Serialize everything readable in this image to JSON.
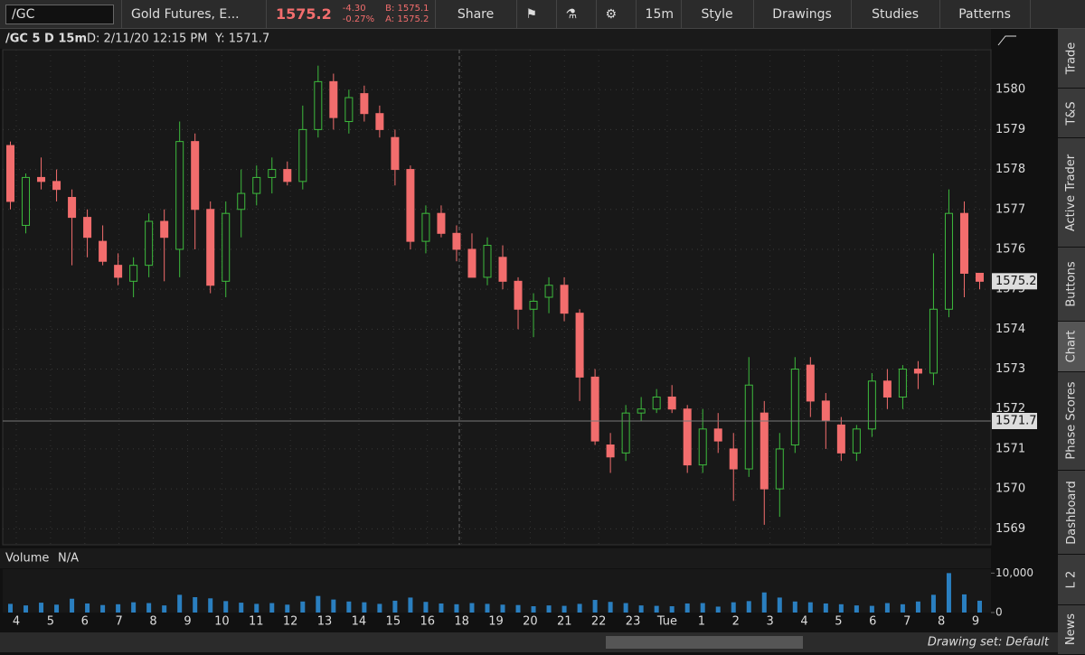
{
  "toolbar": {
    "symbol": "/GC",
    "description": "Gold Futures, E...",
    "last": "1575.2",
    "change": "-4.30",
    "change_pct": "-0.27%",
    "bid": "B: 1575.1",
    "ask": "A: 1575.2",
    "buttons": [
      "Share",
      "15m",
      "Style",
      "Drawings",
      "Studies",
      "Patterns"
    ]
  },
  "chart_header": {
    "symbol": "/GC 5 D 15m",
    "date": "D: 2/11/20 12:15 PM",
    "y": "Y: 1571.7"
  },
  "chart_data": {
    "type": "candlestick",
    "open": [
      1578.6,
      1576.6,
      1577.8,
      1577.7,
      1577.3,
      1576.8,
      1576.2,
      1575.6,
      1575.2,
      1575.6,
      1576.7,
      1576.0,
      1578.7,
      1577.0,
      1575.2,
      1577.0,
      1577.4,
      1577.8,
      1578.0,
      1577.7,
      1579.0,
      1580.2,
      1579.2,
      1579.9,
      1579.4,
      1578.8,
      1578.0,
      1576.2,
      1576.9,
      1576.4,
      1576.0,
      1575.3,
      1575.8,
      1575.2,
      1574.5,
      1574.8,
      1575.1,
      1574.4,
      1572.8,
      1571.1,
      1570.9,
      1571.9,
      1572.0,
      1572.3,
      1572.0,
      1570.6,
      1571.5,
      1571.0,
      1570.5,
      1571.9,
      1570.0,
      1571.1,
      1573.1,
      1572.2,
      1571.6,
      1570.9,
      1571.5,
      1572.7,
      1572.3,
      1573.0,
      1572.9,
      1574.5,
      1576.9,
      1575.4
    ],
    "high": [
      1578.7,
      1577.9,
      1578.3,
      1578.0,
      1577.5,
      1577.0,
      1576.6,
      1575.9,
      1575.8,
      1576.9,
      1577.0,
      1579.2,
      1578.9,
      1577.2,
      1577.2,
      1578.0,
      1578.1,
      1578.3,
      1578.2,
      1579.6,
      1580.6,
      1580.4,
      1580.0,
      1580.1,
      1579.6,
      1579.0,
      1578.1,
      1577.1,
      1577.1,
      1576.6,
      1576.4,
      1576.3,
      1576.1,
      1575.3,
      1574.9,
      1575.3,
      1575.3,
      1574.5,
      1573.0,
      1571.4,
      1572.1,
      1572.3,
      1572.5,
      1572.6,
      1572.1,
      1572.0,
      1571.9,
      1571.4,
      1573.3,
      1572.2,
      1571.4,
      1573.3,
      1573.3,
      1572.4,
      1571.8,
      1571.6,
      1572.9,
      1573.0,
      1573.1,
      1573.2,
      1575.9,
      1577.5,
      1577.2,
      1575.4
    ],
    "low": [
      1577.0,
      1576.4,
      1577.5,
      1577.2,
      1575.6,
      1575.8,
      1575.6,
      1575.1,
      1574.8,
      1575.3,
      1575.2,
      1575.3,
      1576.0,
      1574.9,
      1574.8,
      1576.3,
      1577.1,
      1577.4,
      1577.6,
      1577.5,
      1578.8,
      1579.0,
      1578.9,
      1579.2,
      1578.8,
      1577.6,
      1576.0,
      1575.9,
      1576.3,
      1575.7,
      1575.3,
      1575.1,
      1575.0,
      1574.0,
      1573.8,
      1574.4,
      1574.2,
      1572.2,
      1571.1,
      1570.4,
      1570.7,
      1571.7,
      1571.9,
      1571.9,
      1570.4,
      1570.4,
      1570.9,
      1569.7,
      1570.3,
      1569.1,
      1569.3,
      1570.9,
      1571.8,
      1571.0,
      1570.7,
      1570.7,
      1571.3,
      1572.0,
      1572.0,
      1572.5,
      1572.6,
      1574.3,
      1574.8,
      1575.0
    ],
    "close": [
      1577.2,
      1577.8,
      1577.7,
      1577.5,
      1576.8,
      1576.3,
      1575.7,
      1575.3,
      1575.6,
      1576.7,
      1576.3,
      1578.7,
      1577.0,
      1575.1,
      1576.9,
      1577.4,
      1577.8,
      1578.0,
      1577.7,
      1579.0,
      1580.2,
      1579.3,
      1579.8,
      1579.4,
      1579.0,
      1578.0,
      1576.2,
      1576.9,
      1576.4,
      1576.0,
      1575.3,
      1576.1,
      1575.2,
      1574.5,
      1574.7,
      1575.1,
      1574.4,
      1572.8,
      1571.2,
      1570.8,
      1571.9,
      1572.0,
      1572.3,
      1572.0,
      1570.6,
      1571.5,
      1571.2,
      1570.5,
      1572.6,
      1570.0,
      1571.0,
      1573.0,
      1572.2,
      1571.7,
      1570.9,
      1571.5,
      1572.7,
      1572.3,
      1573.0,
      1572.9,
      1574.5,
      1576.9,
      1575.4,
      1575.2
    ],
    "up_color": "#3dbb3d",
    "down_color": "#f26d6d",
    "ylim": [
      1568.6,
      1581.0
    ],
    "yticks": [
      1569,
      1570,
      1571,
      1572,
      1573,
      1574,
      1575,
      1576,
      1577,
      1578,
      1579,
      1580
    ],
    "grid": true,
    "last_price": 1575.2,
    "crosshair_y": 1571.7,
    "x_labels": [
      "4",
      "5",
      "6",
      "7",
      "8",
      "9",
      "10",
      "11",
      "12",
      "13",
      "14",
      "15",
      "16",
      "18",
      "19",
      "20",
      "21",
      "22",
      "23",
      "Tue",
      "1",
      "2",
      "3",
      "4",
      "5",
      "6",
      "7",
      "8",
      "9"
    ],
    "volume": {
      "title": "Volume",
      "status": "N/A",
      "color": "#2a7fc0",
      "ylim": [
        0,
        11000
      ],
      "yticks": [
        0,
        {
          "value": 10000,
          "label": "10,000"
        }
      ],
      "values": [
        2200,
        1800,
        2500,
        2000,
        3500,
        2300,
        1900,
        2100,
        2600,
        2400,
        1800,
        4500,
        3900,
        3600,
        2900,
        2500,
        2200,
        2400,
        2000,
        2800,
        4200,
        3300,
        2800,
        2600,
        2200,
        3000,
        3800,
        2700,
        2300,
        2100,
        2400,
        2200,
        2000,
        1900,
        1600,
        1800,
        1700,
        2200,
        3200,
        2700,
        2400,
        1800,
        1700,
        1600,
        2300,
        2400,
        1500,
        2600,
        2900,
        5100,
        3800,
        2800,
        2600,
        2300,
        2100,
        1800,
        1700,
        2400,
        2100,
        2800,
        4500,
        10000,
        4600,
        3000
      ]
    }
  },
  "side_tabs": [
    "Trade",
    "T&S",
    "Active Trader",
    "Buttons",
    "Chart",
    "Phase Scores",
    "Dashboard",
    "L 2",
    "News"
  ],
  "status": "Drawing set: Default"
}
